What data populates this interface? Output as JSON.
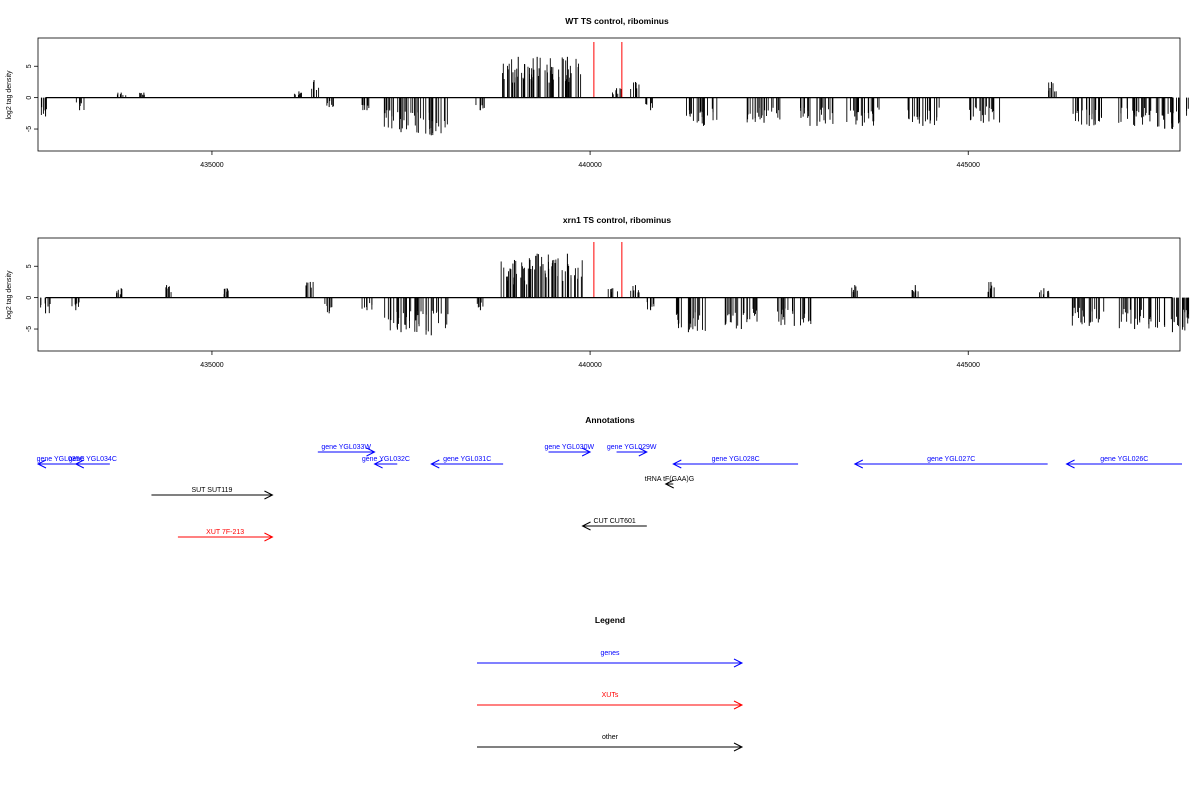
{
  "chart_data": [
    {
      "type": "bar",
      "title": "WT TS control, ribominus",
      "xlabel": "",
      "ylabel": "log2 tag density",
      "xlim": [
        432700,
        447800
      ],
      "ylim": [
        -8.5,
        9.5
      ],
      "x_ticks": [
        435000,
        440000,
        445000
      ],
      "x_tick_labels": [
        "435000",
        "440000",
        "445000"
      ],
      "y_ticks": [
        -5,
        0,
        5
      ],
      "y_tick_labels": [
        "-5",
        "0",
        "5"
      ],
      "markers": [
        440050,
        440420
      ],
      "marker_color": "#ff0000",
      "bar_color": "#000000",
      "series": [
        {
          "values": [
            [
              432800,
              -3
            ],
            [
              433250,
              -2
            ],
            [
              433800,
              0.8
            ],
            [
              434100,
              0.8
            ],
            [
              436150,
              1
            ],
            [
              436350,
              2.8
            ],
            [
              436550,
              -1.5
            ],
            [
              437050,
              -2
            ],
            [
              437500,
              -5.5
            ],
            [
              437900,
              -6
            ],
            [
              438550,
              -2
            ],
            [
              439050,
              6.5
            ],
            [
              439300,
              6.5
            ],
            [
              439700,
              6.5
            ],
            [
              440350,
              1.5
            ],
            [
              440600,
              2.5
            ],
            [
              440800,
              -2
            ],
            [
              441500,
              -4.5
            ],
            [
              442300,
              -4
            ],
            [
              443000,
              -4.5
            ],
            [
              443600,
              -4.5
            ],
            [
              444400,
              -4.5
            ],
            [
              445200,
              -4
            ],
            [
              446100,
              2.5
            ],
            [
              446600,
              -4.5
            ],
            [
              447200,
              -4.5
            ],
            [
              447700,
              -5
            ]
          ]
        }
      ]
    },
    {
      "type": "bar",
      "title": "xrn1 TS control, ribominus",
      "xlabel": "",
      "ylabel": "log2 tag density",
      "xlim": [
        432700,
        447800
      ],
      "ylim": [
        -8.5,
        9.5
      ],
      "x_ticks": [
        435000,
        440000,
        445000
      ],
      "x_tick_labels": [
        "435000",
        "440000",
        "445000"
      ],
      "y_ticks": [
        -5,
        0,
        5
      ],
      "y_tick_labels": [
        "-5",
        "0",
        "5"
      ],
      "markers": [
        440050,
        440420
      ],
      "marker_color": "#ff0000",
      "bar_color": "#000000",
      "series": [
        {
          "values": [
            [
              432800,
              -2.5
            ],
            [
              433200,
              -2
            ],
            [
              433800,
              1.5
            ],
            [
              434400,
              2
            ],
            [
              435200,
              1.5
            ],
            [
              436300,
              2.5
            ],
            [
              436550,
              -2.5
            ],
            [
              437050,
              -2
            ],
            [
              437500,
              -5.5
            ],
            [
              437900,
              -6
            ],
            [
              438550,
              -2
            ],
            [
              439000,
              6
            ],
            [
              439300,
              7
            ],
            [
              439700,
              7
            ],
            [
              440300,
              1.5
            ],
            [
              440600,
              2
            ],
            [
              440800,
              -2
            ],
            [
              441300,
              -5.5
            ],
            [
              442000,
              -5
            ],
            [
              442700,
              -4.5
            ],
            [
              443500,
              2
            ],
            [
              444300,
              2
            ],
            [
              445300,
              2.5
            ],
            [
              446000,
              1.5
            ],
            [
              446600,
              -4.5
            ],
            [
              447200,
              -5
            ],
            [
              447700,
              -5.5
            ]
          ]
        }
      ]
    }
  ],
  "annotations": {
    "title": "Annotations",
    "items": [
      {
        "label": "gene YGL035C",
        "color": "#0000ff",
        "start": 432390,
        "end": 433300,
        "dir": "left",
        "row": 1
      },
      {
        "label": "gene YGL034C",
        "color": "#0000ff",
        "start": 433200,
        "end": 433650,
        "dir": "left",
        "row": 1
      },
      {
        "label": "gene YGL033W",
        "color": "#0000ff",
        "start": 436400,
        "end": 437150,
        "dir": "right",
        "row": 0
      },
      {
        "label": "gene YGL032C",
        "color": "#0000ff",
        "start": 437150,
        "end": 437450,
        "dir": "left",
        "row": 1
      },
      {
        "label": "gene YGL031C",
        "color": "#0000ff",
        "start": 437900,
        "end": 438850,
        "dir": "left",
        "row": 1
      },
      {
        "label": "gene YGL030W",
        "color": "#0000ff",
        "start": 439450,
        "end": 440000,
        "dir": "right",
        "row": 0
      },
      {
        "label": "gene YGL029W",
        "color": "#0000ff",
        "start": 440350,
        "end": 440750,
        "dir": "right",
        "row": 0
      },
      {
        "label": "gene YGL028C",
        "color": "#0000ff",
        "start": 441100,
        "end": 442750,
        "dir": "left",
        "row": 1
      },
      {
        "label": "gene YGL027C",
        "color": "#0000ff",
        "start": 443500,
        "end": 446050,
        "dir": "left",
        "row": 1
      },
      {
        "label": "gene YGL026C",
        "color": "#0000ff",
        "start": 446300,
        "end": 448300,
        "dir": "left",
        "row": 1
      },
      {
        "label": "tRNA tF(GAA)G",
        "color": "#000000",
        "start": 441000,
        "end": 441100,
        "dir": "left",
        "row": 2
      },
      {
        "label": "SUT SUT119",
        "color": "#000000",
        "start": 434200,
        "end": 435800,
        "dir": "right",
        "row": 3
      },
      {
        "label": "CUT CUT601",
        "color": "#000000",
        "start": 439900,
        "end": 440750,
        "dir": "left",
        "row": 4
      },
      {
        "label": "XUT 7F-213",
        "color": "#ff0000",
        "start": 434550,
        "end": 435800,
        "dir": "right",
        "row": 5
      }
    ]
  },
  "legend": {
    "title": "Legend",
    "items": [
      {
        "label": "genes",
        "color": "#0000ff"
      },
      {
        "label": "XUTs",
        "color": "#ff0000"
      },
      {
        "label": "other",
        "color": "#000000"
      }
    ]
  }
}
